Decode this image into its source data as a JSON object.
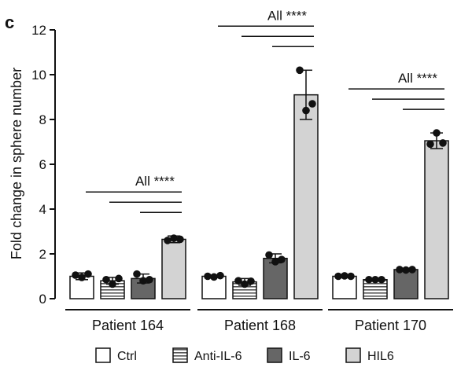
{
  "panel_label": "c",
  "chart_data": {
    "type": "bar",
    "ylabel": "Fold change in sphere number",
    "ylim": [
      0,
      12
    ],
    "yticks": [
      0,
      2,
      4,
      6,
      8,
      10,
      12
    ],
    "groups": [
      "Patient 164",
      "Patient 168",
      "Patient 170"
    ],
    "series": [
      {
        "name": "Ctrl",
        "pattern": "white",
        "values": [
          1.0,
          1.0,
          1.0
        ],
        "errors": [
          0.15,
          0.05,
          0.05
        ],
        "points": [
          [
            1.05,
            0.95,
            1.1
          ],
          [
            1.0,
            0.97,
            1.03
          ],
          [
            1.0,
            1.02,
            1.0
          ]
        ]
      },
      {
        "name": "Anti-IL-6",
        "pattern": "striped",
        "values": [
          0.8,
          0.75,
          0.85
        ],
        "errors": [
          0.15,
          0.15,
          0.05
        ],
        "points": [
          [
            0.85,
            0.65,
            0.9
          ],
          [
            0.8,
            0.65,
            0.78
          ],
          [
            0.85,
            0.85,
            0.85
          ]
        ]
      },
      {
        "name": "IL-6",
        "pattern": "dark",
        "values": [
          0.9,
          1.8,
          1.3
        ],
        "errors": [
          0.2,
          0.2,
          0.03
        ],
        "points": [
          [
            1.1,
            0.8,
            0.85
          ],
          [
            1.95,
            1.65,
            1.75
          ],
          [
            1.3,
            1.28,
            1.3
          ]
        ]
      },
      {
        "name": "HIL6",
        "pattern": "light",
        "values": [
          2.65,
          9.1,
          7.05
        ],
        "errors": [
          0.15,
          1.1,
          0.35
        ],
        "points": [
          [
            2.6,
            2.7,
            2.65
          ],
          [
            10.2,
            8.4,
            8.7
          ],
          [
            6.9,
            7.4,
            6.95
          ]
        ]
      }
    ],
    "significance_label": "All ****",
    "legend_position": "bottom"
  }
}
